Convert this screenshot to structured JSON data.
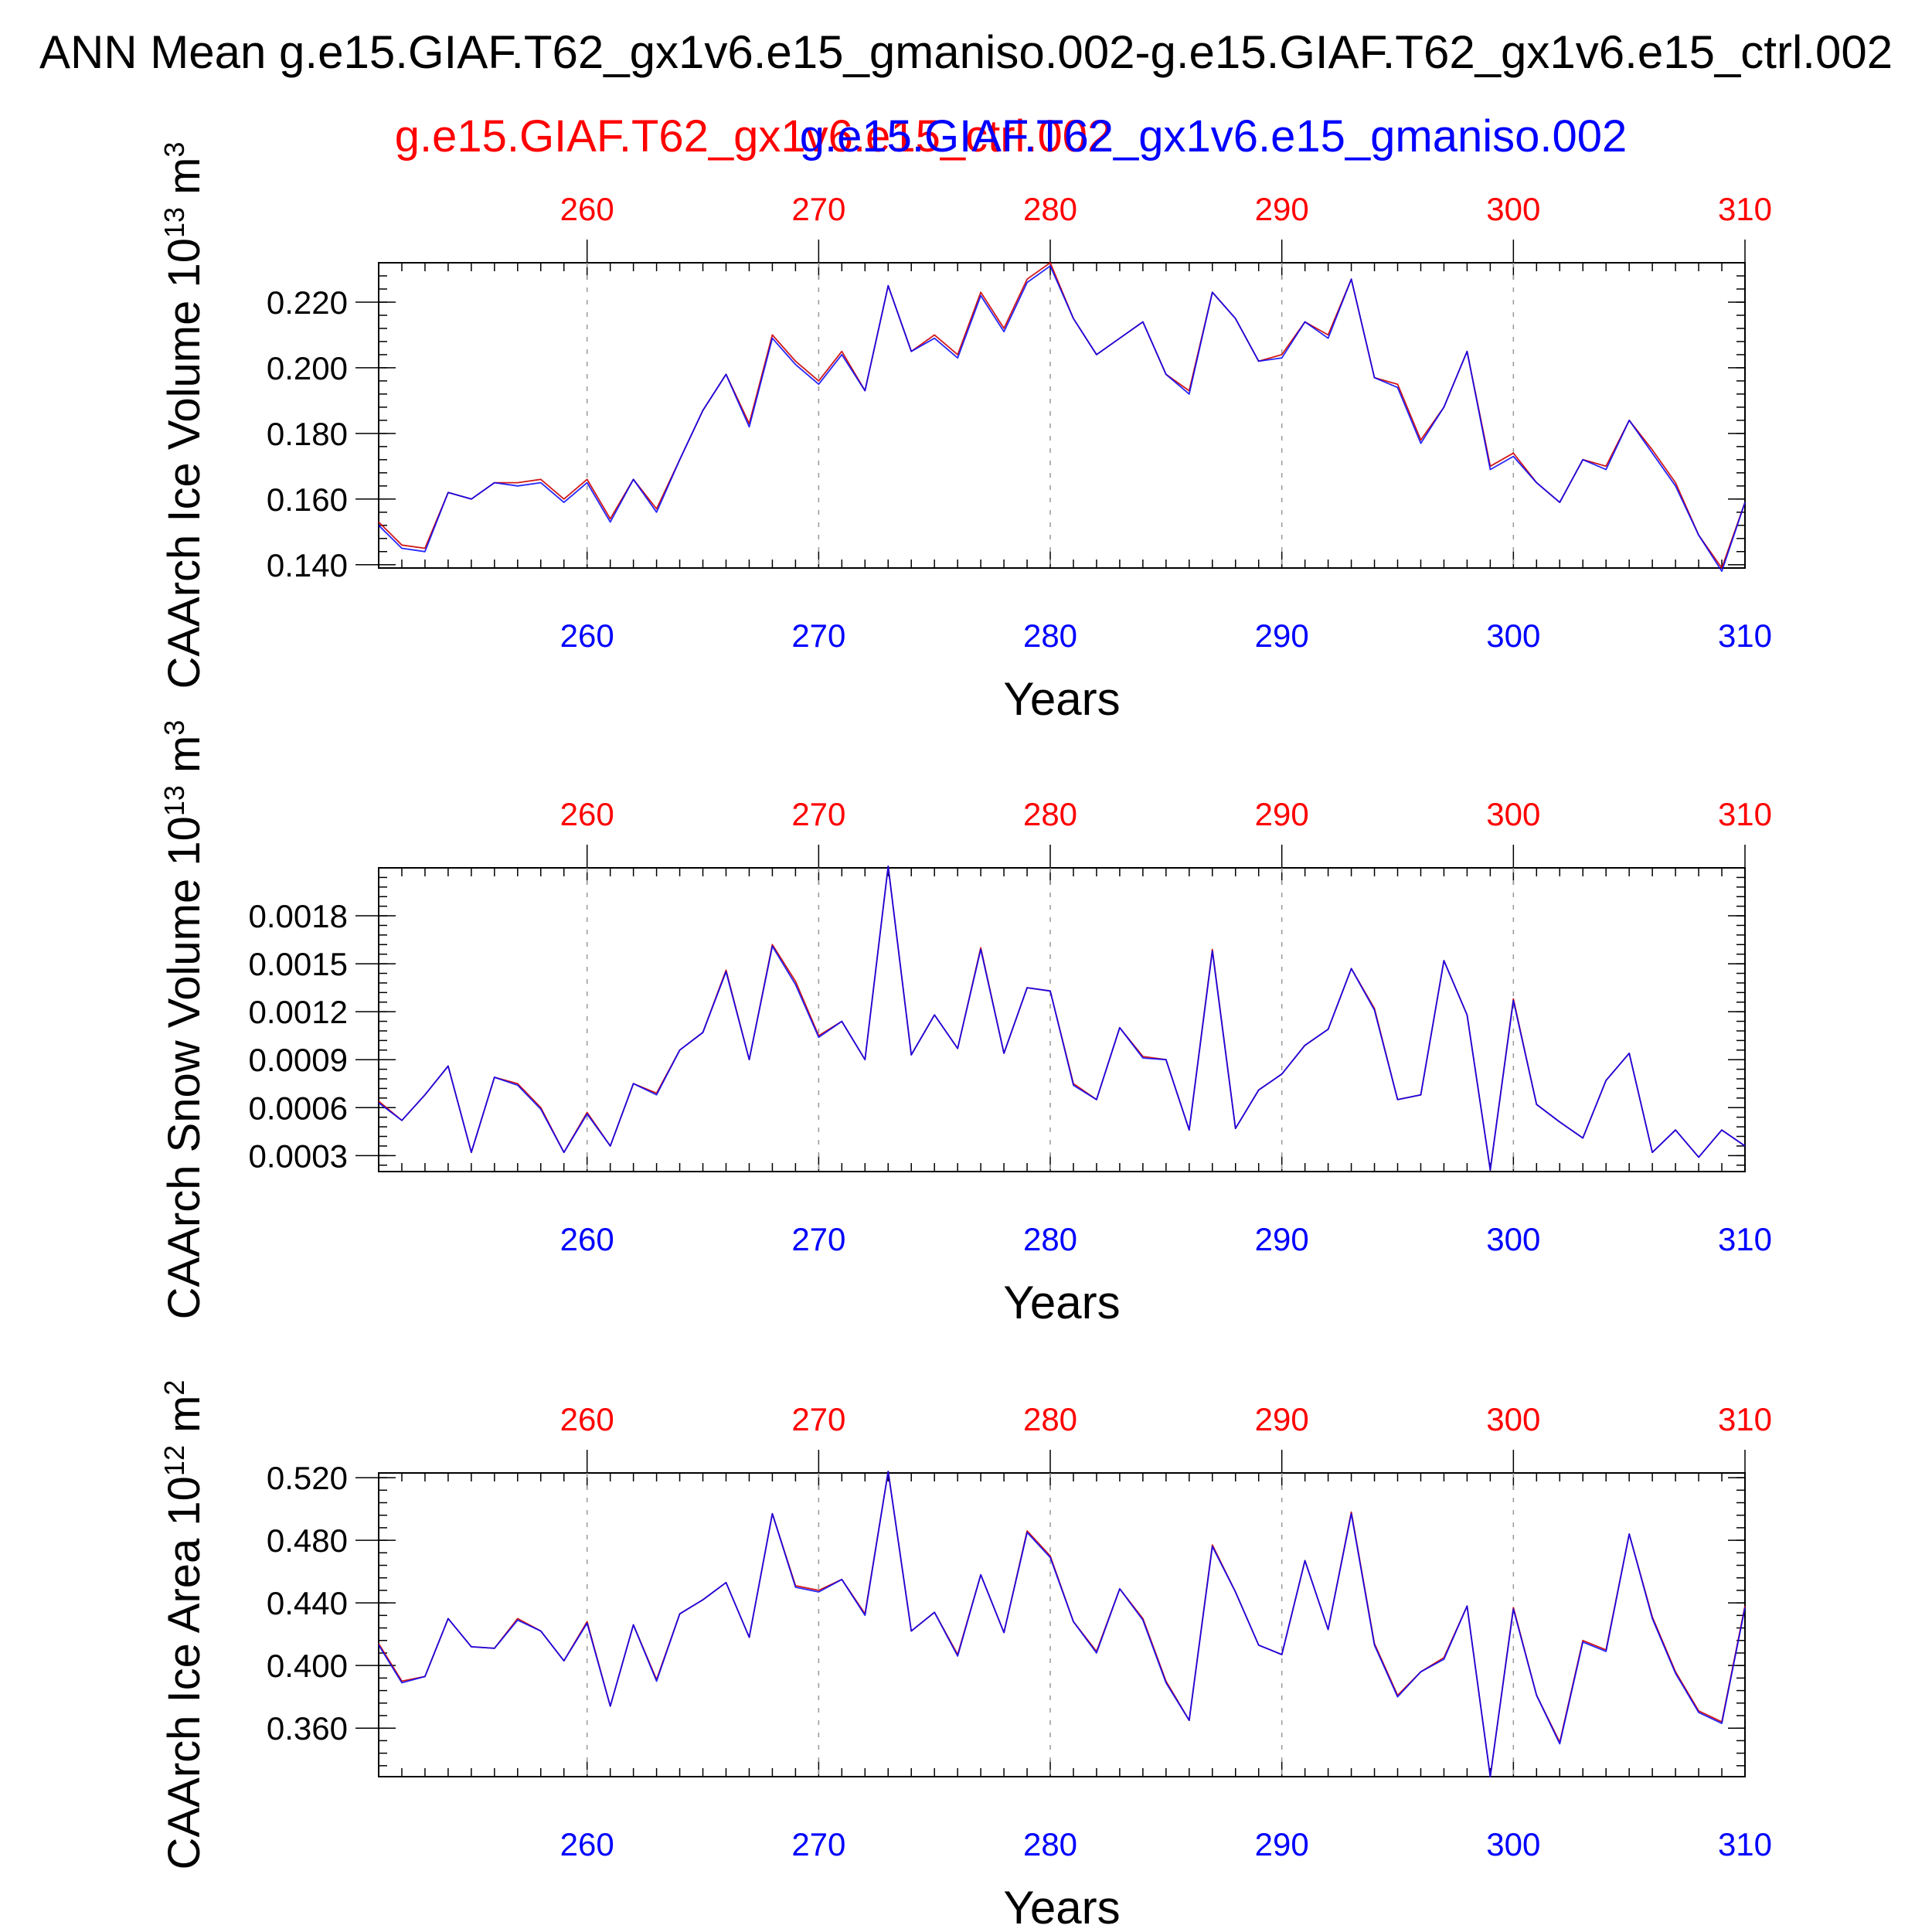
{
  "title": "ANN Mean g.e15.GIAF.T62_gx1v6.e15_gmaniso.002-g.e15.GIAF.T62_gx1v6.e15_ctrl.002",
  "colors": {
    "red": "#ff0000",
    "blue": "#0000ff",
    "axis": "#000000",
    "grid": "#999999",
    "line_red": "#cc0000"
  },
  "legend": {
    "red_label": "g.e15.GIAF.T62_gx1v6.e15_ctrl.002",
    "blue_label": "g.e15.GIAF.T62_gx1v6.e15_gmaniso.002"
  },
  "chart_data": [
    {
      "type": "line",
      "ylabel": "CAArch Ice Volume 10",
      "ylabel_exp": "13",
      "ylabel_unit": " m",
      "ylabel_unit_exp": "3",
      "xlabel": "Years",
      "xlim": [
        251,
        310
      ],
      "ylim": [
        0.139,
        0.232
      ],
      "xticks": [
        "260",
        "270",
        "280",
        "290",
        "300",
        "310"
      ],
      "yticks": [
        "0.140",
        "0.160",
        "0.180",
        "0.200",
        "0.220"
      ],
      "ytick_values": [
        0.14,
        0.16,
        0.18,
        0.2,
        0.22
      ],
      "x": [
        251,
        252,
        253,
        254,
        255,
        256,
        257,
        258,
        259,
        260,
        261,
        262,
        263,
        264,
        265,
        266,
        267,
        268,
        269,
        270,
        271,
        272,
        273,
        274,
        275,
        276,
        277,
        278,
        279,
        280,
        281,
        282,
        283,
        284,
        285,
        286,
        287,
        288,
        289,
        290,
        291,
        292,
        293,
        294,
        295,
        296,
        297,
        298,
        299,
        300,
        301,
        302,
        303,
        304,
        305,
        306,
        307,
        308,
        309,
        310
      ],
      "series": [
        {
          "color": "red",
          "values": [
            0.153,
            0.146,
            0.145,
            0.162,
            0.16,
            0.165,
            0.165,
            0.166,
            0.16,
            0.166,
            0.154,
            0.166,
            0.157,
            0.172,
            0.187,
            0.198,
            0.183,
            0.21,
            0.202,
            0.196,
            0.205,
            0.193,
            0.225,
            0.205,
            0.21,
            0.204,
            0.223,
            0.212,
            0.227,
            0.232,
            0.215,
            0.204,
            0.209,
            0.214,
            0.198,
            0.193,
            0.223,
            0.215,
            0.202,
            0.204,
            0.214,
            0.21,
            0.227,
            0.197,
            0.195,
            0.178,
            0.188,
            0.205,
            0.17,
            0.174,
            0.165,
            0.159,
            0.172,
            0.17,
            0.184,
            0.175,
            0.165,
            0.149,
            0.139,
            0.159
          ]
        },
        {
          "color": "blue",
          "values": [
            0.152,
            0.145,
            0.144,
            0.162,
            0.16,
            0.165,
            0.164,
            0.165,
            0.159,
            0.165,
            0.153,
            0.166,
            0.156,
            0.172,
            0.187,
            0.198,
            0.182,
            0.209,
            0.201,
            0.195,
            0.204,
            0.193,
            0.225,
            0.205,
            0.209,
            0.203,
            0.222,
            0.211,
            0.226,
            0.231,
            0.215,
            0.204,
            0.209,
            0.214,
            0.198,
            0.192,
            0.223,
            0.215,
            0.202,
            0.203,
            0.214,
            0.209,
            0.227,
            0.197,
            0.194,
            0.177,
            0.188,
            0.205,
            0.169,
            0.173,
            0.165,
            0.159,
            0.172,
            0.169,
            0.184,
            0.174,
            0.164,
            0.149,
            0.138,
            0.159
          ]
        }
      ]
    },
    {
      "type": "line",
      "ylabel": "CAArch Snow Volume 10",
      "ylabel_exp": "13",
      "ylabel_unit": " m",
      "ylabel_unit_exp": "3",
      "xlabel": "Years",
      "xlim": [
        251,
        310
      ],
      "ylim": [
        0.0002,
        0.0021
      ],
      "xticks": [
        "260",
        "270",
        "280",
        "290",
        "300",
        "310"
      ],
      "yticks": [
        "0.0003",
        "0.0006",
        "0.0009",
        "0.0012",
        "0.0015",
        "0.0018"
      ],
      "ytick_values": [
        0.0003,
        0.0006,
        0.0009,
        0.0012,
        0.0015,
        0.0018
      ],
      "x": [
        251,
        252,
        253,
        254,
        255,
        256,
        257,
        258,
        259,
        260,
        261,
        262,
        263,
        264,
        265,
        266,
        267,
        268,
        269,
        270,
        271,
        272,
        273,
        274,
        275,
        276,
        277,
        278,
        279,
        280,
        281,
        282,
        283,
        284,
        285,
        286,
        287,
        288,
        289,
        290,
        291,
        292,
        293,
        294,
        295,
        296,
        297,
        298,
        299,
        300,
        301,
        302,
        303,
        304,
        305,
        306,
        307,
        308,
        309,
        310
      ],
      "series": [
        {
          "color": "red",
          "values": [
            0.00064,
            0.00052,
            0.00068,
            0.00086,
            0.00032,
            0.00079,
            0.00075,
            0.0006,
            0.00032,
            0.00057,
            0.00036,
            0.00075,
            0.00069,
            0.00096,
            0.00107,
            0.00146,
            0.0009,
            0.00162,
            0.00139,
            0.00105,
            0.00114,
            0.0009,
            0.00211,
            0.00093,
            0.00118,
            0.00097,
            0.0016,
            0.00094,
            0.00135,
            0.00133,
            0.00075,
            0.00065,
            0.0011,
            0.00092,
            0.0009,
            0.00046,
            0.00159,
            0.00047,
            0.00071,
            0.00081,
            0.00099,
            0.00109,
            0.00147,
            0.00122,
            0.00065,
            0.00068,
            0.00152,
            0.00118,
            0.00021,
            0.00128,
            0.00062,
            0.00051,
            0.00041,
            0.00077,
            0.00094,
            0.00032,
            0.00046,
            0.00029,
            0.00046,
            0.00036
          ]
        },
        {
          "color": "blue",
          "values": [
            0.00063,
            0.00052,
            0.00068,
            0.00086,
            0.00032,
            0.00079,
            0.00074,
            0.00059,
            0.00032,
            0.00056,
            0.00036,
            0.00075,
            0.00068,
            0.00096,
            0.00107,
            0.00145,
            0.0009,
            0.00161,
            0.00137,
            0.00104,
            0.00114,
            0.0009,
            0.00211,
            0.00093,
            0.00118,
            0.00097,
            0.00159,
            0.00094,
            0.00135,
            0.00133,
            0.00074,
            0.00065,
            0.0011,
            0.00091,
            0.0009,
            0.00046,
            0.00158,
            0.00047,
            0.00071,
            0.00081,
            0.00099,
            0.00109,
            0.00147,
            0.00121,
            0.00065,
            0.00068,
            0.00152,
            0.00118,
            0.00021,
            0.00127,
            0.00062,
            0.00051,
            0.00041,
            0.00077,
            0.00094,
            0.00032,
            0.00046,
            0.00029,
            0.00046,
            0.00036
          ]
        }
      ]
    },
    {
      "type": "line",
      "ylabel": "CAArch Ice Area 10",
      "ylabel_exp": "12",
      "ylabel_unit": " m",
      "ylabel_unit_exp": "2",
      "xlabel": "Years",
      "xlim": [
        251,
        310
      ],
      "ylim": [
        0.329,
        0.523
      ],
      "xticks": [
        "260",
        "270",
        "280",
        "290",
        "300",
        "310"
      ],
      "yticks": [
        "0.360",
        "0.400",
        "0.440",
        "0.480",
        "0.520"
      ],
      "ytick_values": [
        0.36,
        0.4,
        0.44,
        0.48,
        0.52
      ],
      "x": [
        251,
        252,
        253,
        254,
        255,
        256,
        257,
        258,
        259,
        260,
        261,
        262,
        263,
        264,
        265,
        266,
        267,
        268,
        269,
        270,
        271,
        272,
        273,
        274,
        275,
        276,
        277,
        278,
        279,
        280,
        281,
        282,
        283,
        284,
        285,
        286,
        287,
        288,
        289,
        290,
        291,
        292,
        293,
        294,
        295,
        296,
        297,
        298,
        299,
        300,
        301,
        302,
        303,
        304,
        305,
        306,
        307,
        308,
        309,
        310
      ],
      "series": [
        {
          "color": "red",
          "values": [
            0.414,
            0.39,
            0.393,
            0.43,
            0.412,
            0.411,
            0.43,
            0.422,
            0.403,
            0.428,
            0.374,
            0.426,
            0.391,
            0.433,
            0.442,
            0.453,
            0.418,
            0.497,
            0.451,
            0.448,
            0.455,
            0.433,
            0.524,
            0.422,
            0.434,
            0.407,
            0.458,
            0.421,
            0.486,
            0.47,
            0.428,
            0.409,
            0.449,
            0.43,
            0.39,
            0.365,
            0.477,
            0.447,
            0.413,
            0.407,
            0.467,
            0.423,
            0.498,
            0.414,
            0.381,
            0.396,
            0.405,
            0.438,
            0.329,
            0.437,
            0.381,
            0.351,
            0.416,
            0.41,
            0.484,
            0.431,
            0.396,
            0.371,
            0.364,
            0.438
          ]
        },
        {
          "color": "blue",
          "values": [
            0.413,
            0.389,
            0.393,
            0.43,
            0.412,
            0.411,
            0.429,
            0.422,
            0.403,
            0.427,
            0.374,
            0.426,
            0.39,
            0.433,
            0.442,
            0.453,
            0.418,
            0.497,
            0.45,
            0.447,
            0.455,
            0.432,
            0.524,
            0.422,
            0.434,
            0.406,
            0.458,
            0.421,
            0.485,
            0.469,
            0.428,
            0.408,
            0.449,
            0.429,
            0.389,
            0.365,
            0.476,
            0.447,
            0.413,
            0.407,
            0.467,
            0.423,
            0.497,
            0.413,
            0.38,
            0.396,
            0.404,
            0.438,
            0.329,
            0.436,
            0.381,
            0.35,
            0.415,
            0.409,
            0.484,
            0.43,
            0.395,
            0.37,
            0.363,
            0.437
          ]
        }
      ]
    }
  ]
}
